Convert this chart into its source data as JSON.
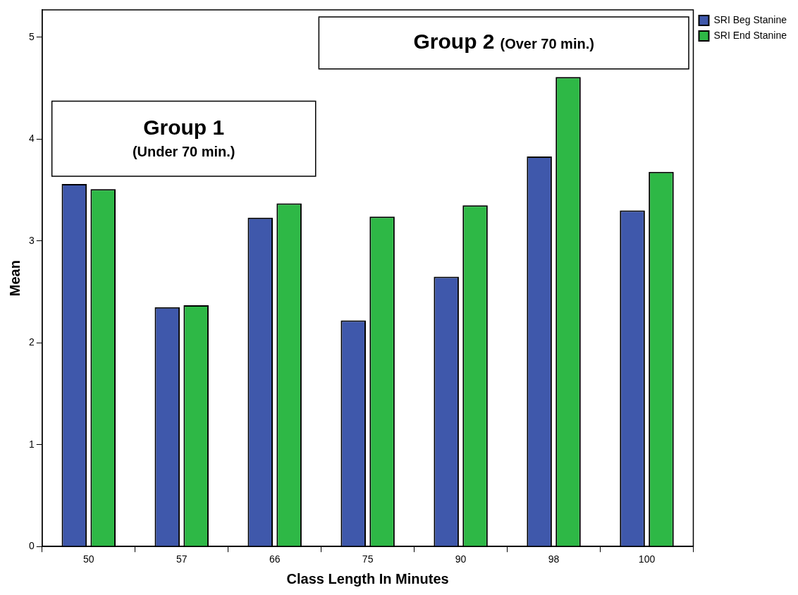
{
  "chart_data": {
    "type": "bar",
    "xlabel": "Class Length In Minutes",
    "ylabel": "Mean",
    "categories": [
      "50",
      "57",
      "66",
      "75",
      "90",
      "98",
      "100"
    ],
    "series": [
      {
        "name": "SRI Beg Stanine",
        "color": "#3f58ab",
        "values": [
          3.56,
          2.35,
          3.23,
          2.22,
          2.65,
          3.83,
          3.3
        ]
      },
      {
        "name": "SRI End Stanine",
        "color": "#2eb846",
        "values": [
          3.51,
          2.37,
          3.37,
          3.24,
          3.35,
          4.61,
          3.68
        ]
      }
    ],
    "ylim": [
      0,
      5.27
    ],
    "yticks": [
      0,
      1,
      2,
      3,
      4,
      5
    ],
    "grid": false,
    "legend": "top right",
    "annotations": [
      "Group 1",
      "(Under 70 min.)",
      "Group 2",
      "(Over 70 min.)"
    ]
  }
}
